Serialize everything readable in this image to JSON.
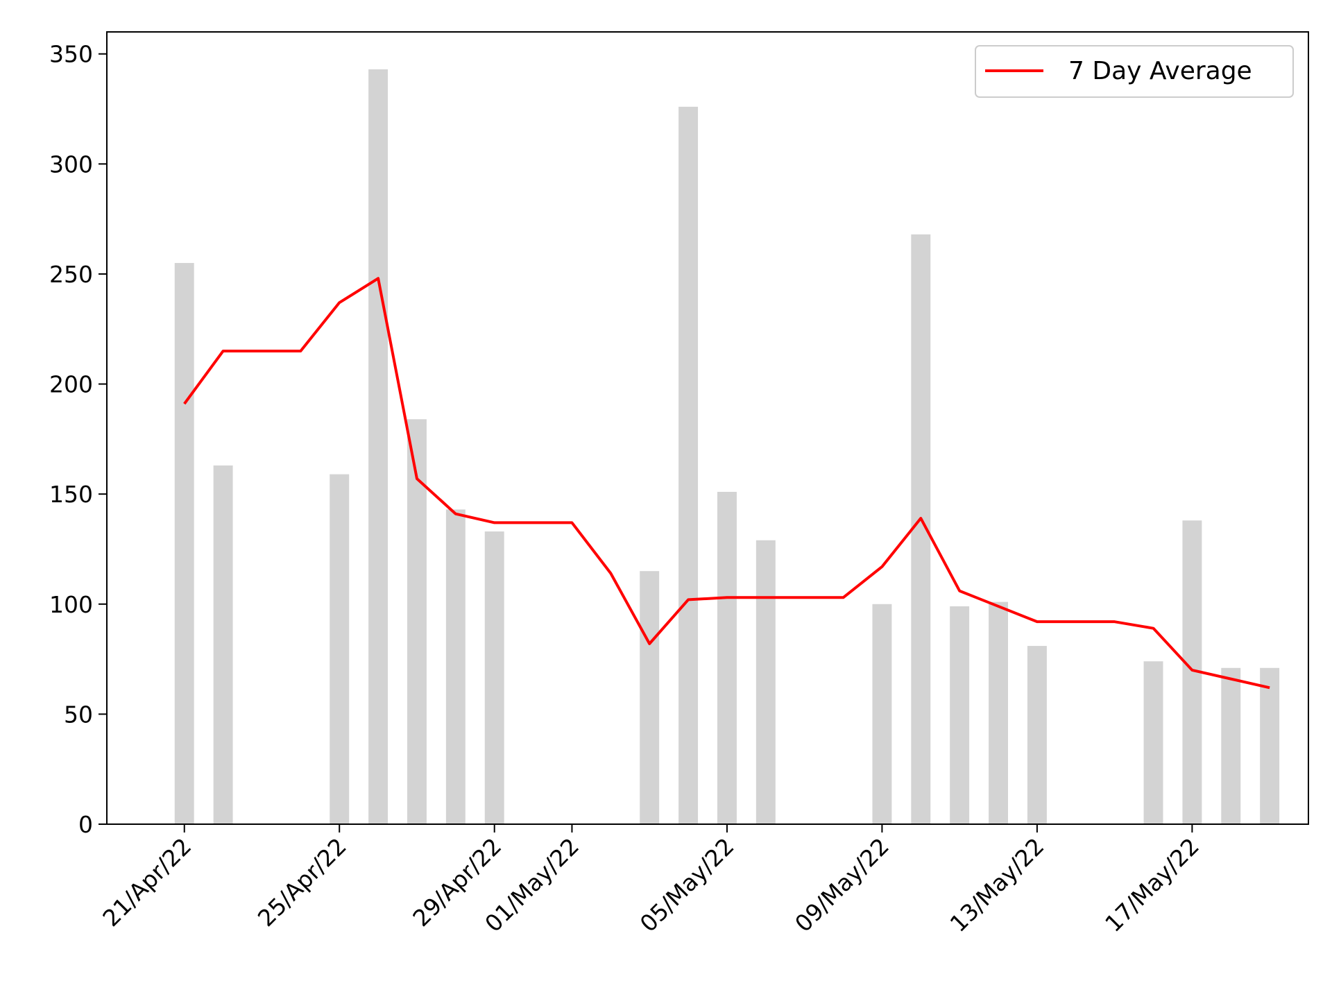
{
  "chart_data": {
    "type": "bar",
    "title": "",
    "xlabel": "",
    "ylabel": "",
    "ylim": [
      0,
      360
    ],
    "y_ticks": [
      0,
      50,
      100,
      150,
      200,
      250,
      300,
      350
    ],
    "x_range": [
      "2022-04-19",
      "2022-05-20"
    ],
    "x_tick_labels": [
      {
        "date": "2022-04-21",
        "label": "21/Apr/22"
      },
      {
        "date": "2022-04-25",
        "label": "25/Apr/22"
      },
      {
        "date": "2022-04-29",
        "label": "29/Apr/22"
      },
      {
        "date": "2022-05-01",
        "label": "01/May/22"
      },
      {
        "date": "2022-05-05",
        "label": "05/May/22"
      },
      {
        "date": "2022-05-09",
        "label": "09/May/22"
      },
      {
        "date": "2022-05-13",
        "label": "13/May/22"
      },
      {
        "date": "2022-05-17",
        "label": "17/May/22"
      }
    ],
    "grid": false,
    "legend": {
      "position": "top-right"
    },
    "series": [
      {
        "kind": "bar",
        "color": "#d3d3d3",
        "points": [
          {
            "x": "2022-04-21",
            "y": 255
          },
          {
            "x": "2022-04-22",
            "y": 163
          },
          {
            "x": "2022-04-25",
            "y": 159
          },
          {
            "x": "2022-04-26",
            "y": 343
          },
          {
            "x": "2022-04-27",
            "y": 184
          },
          {
            "x": "2022-04-28",
            "y": 143
          },
          {
            "x": "2022-04-29",
            "y": 133
          },
          {
            "x": "2022-05-03",
            "y": 115
          },
          {
            "x": "2022-05-04",
            "y": 326
          },
          {
            "x": "2022-05-05",
            "y": 151
          },
          {
            "x": "2022-05-06",
            "y": 129
          },
          {
            "x": "2022-05-09",
            "y": 100
          },
          {
            "x": "2022-05-10",
            "y": 268
          },
          {
            "x": "2022-05-11",
            "y": 99
          },
          {
            "x": "2022-05-12",
            "y": 101
          },
          {
            "x": "2022-05-13",
            "y": 81
          },
          {
            "x": "2022-05-16",
            "y": 74
          },
          {
            "x": "2022-05-17",
            "y": 138
          },
          {
            "x": "2022-05-18",
            "y": 71
          },
          {
            "x": "2022-05-19",
            "y": 71
          }
        ]
      },
      {
        "kind": "line",
        "name": "7 Day Average",
        "color": "#ff0000",
        "points": [
          {
            "x": "2022-04-21",
            "y": 191
          },
          {
            "x": "2022-04-22",
            "y": 215
          },
          {
            "x": "2022-04-23",
            "y": 215
          },
          {
            "x": "2022-04-24",
            "y": 215
          },
          {
            "x": "2022-04-25",
            "y": 237
          },
          {
            "x": "2022-04-26",
            "y": 248
          },
          {
            "x": "2022-04-27",
            "y": 157
          },
          {
            "x": "2022-04-28",
            "y": 141
          },
          {
            "x": "2022-04-29",
            "y": 137
          },
          {
            "x": "2022-04-30",
            "y": 137
          },
          {
            "x": "2022-05-01",
            "y": 137
          },
          {
            "x": "2022-05-02",
            "y": 114
          },
          {
            "x": "2022-05-03",
            "y": 82
          },
          {
            "x": "2022-05-04",
            "y": 102
          },
          {
            "x": "2022-05-05",
            "y": 103
          },
          {
            "x": "2022-05-06",
            "y": 103
          },
          {
            "x": "2022-05-07",
            "y": 103
          },
          {
            "x": "2022-05-08",
            "y": 103
          },
          {
            "x": "2022-05-09",
            "y": 117
          },
          {
            "x": "2022-05-10",
            "y": 139
          },
          {
            "x": "2022-05-11",
            "y": 106
          },
          {
            "x": "2022-05-12",
            "y": 99
          },
          {
            "x": "2022-05-13",
            "y": 92
          },
          {
            "x": "2022-05-14",
            "y": 92
          },
          {
            "x": "2022-05-15",
            "y": 92
          },
          {
            "x": "2022-05-16",
            "y": 89
          },
          {
            "x": "2022-05-17",
            "y": 70
          },
          {
            "x": "2022-05-18",
            "y": 66
          },
          {
            "x": "2022-05-19",
            "y": 62
          }
        ]
      }
    ]
  }
}
